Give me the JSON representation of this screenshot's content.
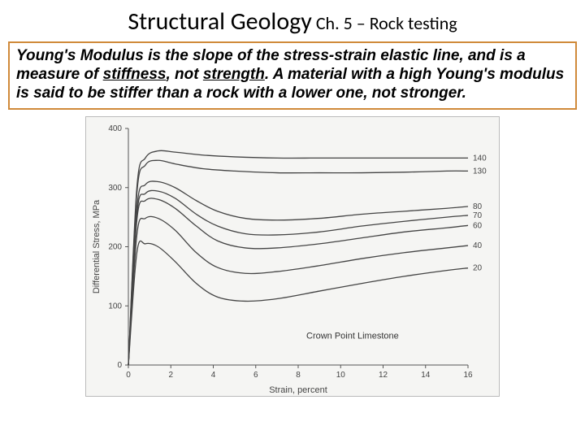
{
  "header": {
    "title": "Structural Geology",
    "subtitle": " Ch. 5 – Rock testing"
  },
  "info_box": {
    "border_color": "#d08a3a",
    "text_parts": {
      "p1": "Young's Modulus is the slope of the stress-strain elastic line, and is a measure of ",
      "u1": "stiffness",
      "p2": ", not ",
      "u2": "strength",
      "p3": ". A material with a high Young's modulus is said to be stiffer than a rock with a lower one, not stronger."
    }
  },
  "chart": {
    "title": "Crown Point Limestone",
    "xlabel": "Strain, percent",
    "ylabel": "Differential Stress, MPa",
    "xlim": [
      0,
      16
    ],
    "ylim": [
      0,
      400
    ],
    "xticks": [
      0,
      2,
      4,
      6,
      8,
      10,
      12,
      14,
      16
    ],
    "yticks": [
      0,
      100,
      200,
      300,
      400
    ],
    "background": "#f5f5f3",
    "axis_color": "#555555",
    "line_color": "#444444",
    "line_width": 1.3,
    "series": [
      {
        "label": "140",
        "points": [
          [
            0,
            0
          ],
          [
            0.4,
            300
          ],
          [
            0.8,
            350
          ],
          [
            1.4,
            362
          ],
          [
            2.2,
            360
          ],
          [
            3.5,
            355
          ],
          [
            5,
            352
          ],
          [
            7,
            350
          ],
          [
            9,
            350
          ],
          [
            11,
            350
          ],
          [
            13,
            350
          ],
          [
            15,
            350
          ],
          [
            16,
            350
          ]
        ]
      },
      {
        "label": "130",
        "points": [
          [
            0,
            0
          ],
          [
            0.4,
            290
          ],
          [
            0.8,
            338
          ],
          [
            1.4,
            346
          ],
          [
            2.2,
            340
          ],
          [
            3.5,
            332
          ],
          [
            5,
            328
          ],
          [
            7,
            325
          ],
          [
            9,
            325
          ],
          [
            11,
            325
          ],
          [
            13,
            326
          ],
          [
            15,
            328
          ],
          [
            16,
            328
          ]
        ]
      },
      {
        "label": "80",
        "points": [
          [
            0,
            0
          ],
          [
            0.4,
            265
          ],
          [
            0.8,
            305
          ],
          [
            1.4,
            310
          ],
          [
            2.2,
            300
          ],
          [
            3.2,
            278
          ],
          [
            4.2,
            260
          ],
          [
            5.5,
            248
          ],
          [
            7,
            245
          ],
          [
            9,
            248
          ],
          [
            11,
            255
          ],
          [
            13,
            260
          ],
          [
            15,
            265
          ],
          [
            16,
            268
          ]
        ]
      },
      {
        "label": "70",
        "points": [
          [
            0,
            0
          ],
          [
            0.4,
            255
          ],
          [
            0.8,
            290
          ],
          [
            1.4,
            294
          ],
          [
            2.2,
            282
          ],
          [
            3.2,
            255
          ],
          [
            4.2,
            235
          ],
          [
            5.5,
            222
          ],
          [
            7,
            220
          ],
          [
            9,
            225
          ],
          [
            11,
            235
          ],
          [
            13,
            243
          ],
          [
            15,
            250
          ],
          [
            16,
            253
          ]
        ]
      },
      {
        "label": "60",
        "points": [
          [
            0,
            0
          ],
          [
            0.4,
            245
          ],
          [
            0.8,
            278
          ],
          [
            1.4,
            280
          ],
          [
            2.2,
            265
          ],
          [
            3.2,
            235
          ],
          [
            4.2,
            210
          ],
          [
            5.5,
            198
          ],
          [
            7,
            198
          ],
          [
            9,
            205
          ],
          [
            11,
            215
          ],
          [
            13,
            225
          ],
          [
            15,
            232
          ],
          [
            16,
            236
          ]
        ]
      },
      {
        "label": "40",
        "points": [
          [
            0,
            0
          ],
          [
            0.4,
            220
          ],
          [
            0.8,
            248
          ],
          [
            1.4,
            248
          ],
          [
            2.2,
            228
          ],
          [
            3.2,
            190
          ],
          [
            4.2,
            165
          ],
          [
            5.5,
            155
          ],
          [
            7,
            158
          ],
          [
            9,
            168
          ],
          [
            11,
            180
          ],
          [
            13,
            190
          ],
          [
            15,
            198
          ],
          [
            16,
            202
          ]
        ]
      },
      {
        "label": "20",
        "points": [
          [
            0,
            0
          ],
          [
            0.4,
            190
          ],
          [
            0.8,
            205
          ],
          [
            1.4,
            200
          ],
          [
            2.2,
            175
          ],
          [
            3.2,
            138
          ],
          [
            4.2,
            115
          ],
          [
            5.5,
            108
          ],
          [
            7,
            112
          ],
          [
            9,
            125
          ],
          [
            11,
            138
          ],
          [
            13,
            150
          ],
          [
            15,
            160
          ],
          [
            16,
            164
          ]
        ]
      }
    ]
  }
}
